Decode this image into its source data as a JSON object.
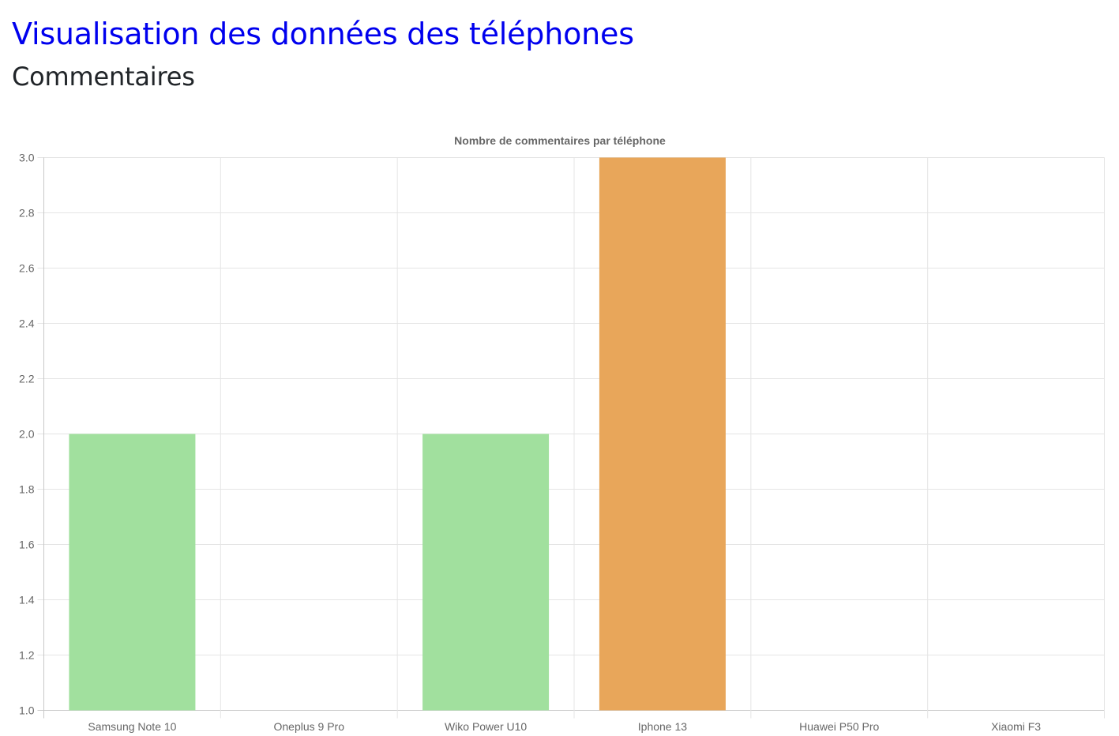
{
  "header": {
    "title": "Visualisation des données des téléphones",
    "subtitle": "Commentaires"
  },
  "colors": {
    "title": "#0000ee",
    "subtitle": "#212529",
    "grid": "#e5e5e5",
    "tick_text": "#666666"
  },
  "chart_data": {
    "type": "bar",
    "title": "Nombre de commentaires par téléphone",
    "xlabel": "",
    "ylabel": "",
    "categories": [
      "Samsung Note 10",
      "Oneplus 9 Pro",
      "Wiko Power U10",
      "Iphone 13",
      "Huawei P50 Pro",
      "Xiaomi F3"
    ],
    "values": [
      2,
      1,
      2,
      3,
      1,
      1
    ],
    "bar_colors": [
      "#a1e09e",
      "#a1e09e",
      "#a1e09e",
      "#e8a65a",
      "#a1e09e",
      "#a1e09e"
    ],
    "ylim": [
      1,
      3
    ],
    "yticks": [
      "1.0",
      "1.2",
      "1.4",
      "1.6",
      "1.8",
      "2.0",
      "2.2",
      "2.4",
      "2.6",
      "2.8",
      "3.0"
    ],
    "grid": true,
    "legend": "none"
  }
}
